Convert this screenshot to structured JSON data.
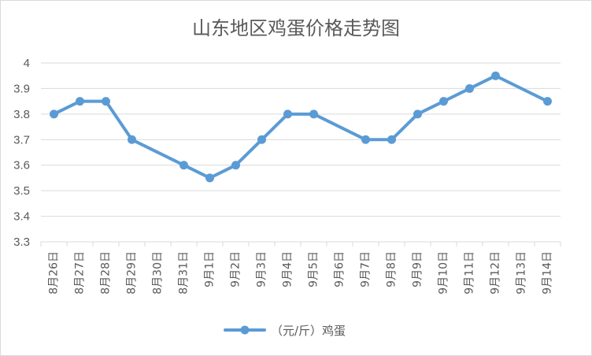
{
  "chart_data": {
    "type": "line",
    "title": "山东地区鸡蛋价格走势图",
    "categories": [
      "8月26日",
      "8月27日",
      "8月28日",
      "8月29日",
      "8月30日",
      "8月31日",
      "9月1日",
      "9月2日",
      "9月3日",
      "9月4日",
      "9月5日",
      "9月6日",
      "9月7日",
      "9月8日",
      "9月9日",
      "9月10日",
      "9月11日",
      "9月12日",
      "9月13日",
      "9月14日"
    ],
    "series": [
      {
        "name": "（元/斤）鸡蛋",
        "color": "#5B9BD5",
        "values": [
          3.8,
          3.85,
          3.85,
          3.7,
          null,
          3.6,
          3.55,
          3.6,
          3.7,
          3.8,
          3.8,
          null,
          3.7,
          3.7,
          3.8,
          3.85,
          3.9,
          3.95,
          null,
          3.85
        ]
      }
    ],
    "yticks": [
      "3.3",
      "3.4",
      "3.5",
      "3.6",
      "3.7",
      "3.8",
      "3.9",
      "4"
    ],
    "ylim": [
      3.3,
      4.0
    ],
    "grid": true,
    "legend_position": "bottom"
  }
}
